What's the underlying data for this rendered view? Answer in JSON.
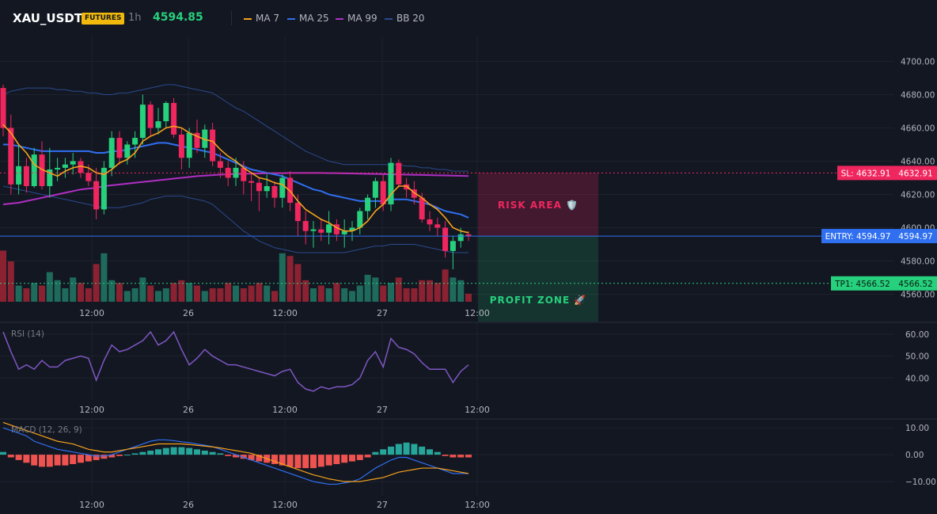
{
  "header": {
    "symbol": "XAU_USDT",
    "badge": "FUTURES",
    "timeframe": "1h",
    "last_price": "4594.85"
  },
  "legend": [
    {
      "label": "MA 7",
      "color": "#f7a21b"
    },
    {
      "label": "MA 25",
      "color": "#2f6ff0"
    },
    {
      "label": "MA 99",
      "color": "#b02fc4"
    },
    {
      "label": "BB 20",
      "color": "#2a4a8c"
    }
  ],
  "colors": {
    "up": "#26d07c",
    "down": "#f0265e",
    "vol_up": "#1e6b5c",
    "vol_down": "#8b2232",
    "rsi": "#7e57c2",
    "macd_line": "#2f6ff0",
    "signal_line": "#f7a21b",
    "hist_up": "#26a69a",
    "hist_down": "#ef5350"
  },
  "time_labels": [
    "12:00",
    "26",
    "12:00",
    "27",
    "12:00"
  ],
  "levels": {
    "sl": {
      "label": "SL: 4632.91",
      "value": 4632.91,
      "price_tag": "4632.91",
      "color": "#f0265e"
    },
    "entry": {
      "label": "ENTRY: 4594.97",
      "value": 4594.97,
      "price_tag": "4594.97",
      "color": "#2f6ff0"
    },
    "tp": {
      "label": "TP1: 4566.52",
      "value": 4566.52,
      "price_tag": "4566.52",
      "color": "#26d07c"
    }
  },
  "zones": {
    "risk": {
      "label": "RISK AREA 🛡️"
    },
    "profit": {
      "label": "PROFIT ZONE 🚀"
    }
  },
  "chart_data": [
    {
      "type": "candlestick",
      "ylim": [
        4555,
        4715
      ],
      "yticks": [
        "4700.00",
        "4680.00",
        "4660.00",
        "4640.00",
        "4620.00",
        "4600.00",
        "4580.00",
        "4560.00"
      ],
      "ytick_values": [
        4700,
        4680,
        4660,
        4640,
        4620,
        4600,
        4580,
        4560
      ],
      "candles": [
        [
          4684,
          4686,
          4655,
          4660
        ],
        [
          4660,
          4668,
          4620,
          4626
        ],
        [
          4626,
          4650,
          4620,
          4637
        ],
        [
          4637,
          4642,
          4621,
          4625
        ],
        [
          4625,
          4648,
          4624,
          4644
        ],
        [
          4644,
          4652,
          4623,
          4625
        ],
        [
          4625,
          4648,
          4618,
          4635
        ],
        [
          4635,
          4642,
          4628,
          4636
        ],
        [
          4636,
          4642,
          4630,
          4638
        ],
        [
          4638,
          4645,
          4632,
          4640
        ],
        [
          4640,
          4642,
          4630,
          4633
        ],
        [
          4633,
          4638,
          4625,
          4628
        ],
        [
          4628,
          4636,
          4605,
          4611
        ],
        [
          4611,
          4640,
          4608,
          4636
        ],
        [
          4636,
          4658,
          4631,
          4654
        ],
        [
          4654,
          4658,
          4638,
          4642
        ],
        [
          4642,
          4652,
          4638,
          4650
        ],
        [
          4650,
          4658,
          4642,
          4654
        ],
        [
          4654,
          4680,
          4650,
          4674
        ],
        [
          4674,
          4676,
          4655,
          4660
        ],
        [
          4660,
          4672,
          4656,
          4664
        ],
        [
          4664,
          4676,
          4660,
          4675
        ],
        [
          4675,
          4678,
          4654,
          4656
        ],
        [
          4656,
          4660,
          4635,
          4642
        ],
        [
          4642,
          4660,
          4636,
          4657
        ],
        [
          4657,
          4665,
          4645,
          4648
        ],
        [
          4648,
          4662,
          4642,
          4659
        ],
        [
          4659,
          4663,
          4637,
          4640
        ],
        [
          4640,
          4645,
          4630,
          4636
        ],
        [
          4636,
          4640,
          4625,
          4630
        ],
        [
          4630,
          4642,
          4625,
          4636
        ],
        [
          4636,
          4640,
          4620,
          4628
        ],
        [
          4628,
          4632,
          4616,
          4627
        ],
        [
          4627,
          4630,
          4610,
          4622
        ],
        [
          4622,
          4632,
          4618,
          4625
        ],
        [
          4625,
          4628,
          4612,
          4618
        ],
        [
          4618,
          4632,
          4612,
          4630
        ],
        [
          4630,
          4634,
          4610,
          4615
        ],
        [
          4615,
          4620,
          4595,
          4604
        ],
        [
          4604,
          4610,
          4590,
          4598
        ],
        [
          4598,
          4604,
          4588,
          4599
        ],
        [
          4599,
          4605,
          4592,
          4597
        ],
        [
          4597,
          4610,
          4590,
          4602
        ],
        [
          4602,
          4605,
          4592,
          4596
        ],
        [
          4596,
          4605,
          4588,
          4598
        ],
        [
          4598,
          4604,
          4592,
          4600
        ],
        [
          4600,
          4612,
          4596,
          4610
        ],
        [
          4610,
          4620,
          4605,
          4618
        ],
        [
          4618,
          4630,
          4612,
          4628
        ],
        [
          4628,
          4632,
          4610,
          4614
        ],
        [
          4614,
          4642,
          4610,
          4639
        ],
        [
          4639,
          4641,
          4624,
          4626
        ],
        [
          4626,
          4630,
          4618,
          4623
        ],
        [
          4623,
          4628,
          4614,
          4618
        ],
        [
          4618,
          4621,
          4603,
          4605
        ],
        [
          4605,
          4610,
          4598,
          4602
        ],
        [
          4602,
          4606,
          4595,
          4600
        ],
        [
          4600,
          4604,
          4582,
          4586
        ],
        [
          4586,
          4595,
          4575,
          4592
        ],
        [
          4592,
          4600,
          4588,
          4596
        ],
        [
          4596,
          4598,
          4592,
          4595
        ]
      ],
      "volume": [
        38,
        30,
        12,
        10,
        14,
        12,
        22,
        16,
        10,
        18,
        14,
        10,
        28,
        36,
        16,
        14,
        8,
        10,
        18,
        12,
        8,
        10,
        14,
        16,
        14,
        12,
        8,
        10,
        10,
        14,
        12,
        10,
        12,
        14,
        12,
        8,
        36,
        34,
        28,
        16,
        10,
        12,
        10,
        14,
        10,
        8,
        12,
        20,
        18,
        12,
        14,
        18,
        10,
        10,
        16,
        16,
        14,
        24,
        18,
        16,
        6
      ],
      "ma7_values": [
        4662,
        4657,
        4650,
        4645,
        4638,
        4635,
        4633,
        4631,
        4634,
        4636,
        4637,
        4636,
        4633,
        4632,
        4635,
        4639,
        4641,
        4645,
        4652,
        4655,
        4657,
        4660,
        4661,
        4660,
        4657,
        4655,
        4653,
        4652,
        4647,
        4643,
        4640,
        4636,
        4633,
        4630,
        4629,
        4627,
        4626,
        4622,
        4616,
        4611,
        4608,
        4605,
        4603,
        4600,
        4598,
        4598,
        4600,
        4604,
        4610,
        4614,
        4620,
        4625,
        4625,
        4621,
        4618,
        4614,
        4611,
        4606,
        4600,
        4598,
        4597
      ],
      "ma25_values": [
        4650,
        4650,
        4649,
        4648,
        4647,
        4646,
        4646,
        4646,
        4646,
        4646,
        4646,
        4646,
        4645,
        4645,
        4646,
        4646,
        4647,
        4648,
        4649,
        4650,
        4651,
        4651,
        4650,
        4649,
        4648,
        4647,
        4646,
        4645,
        4643,
        4641,
        4639,
        4637,
        4635,
        4634,
        4633,
        4632,
        4631,
        4629,
        4627,
        4625,
        4623,
        4622,
        4620,
        4619,
        4618,
        4617,
        4616,
        4616,
        4616,
        4616,
        4617,
        4617,
        4617,
        4616,
        4615,
        4614,
        4612,
        4610,
        4609,
        4608,
        4606
      ],
      "ma99_values": [
        4614,
        4614.5,
        4615,
        4616,
        4617,
        4618,
        4619,
        4620,
        4621,
        4622,
        4623,
        4623.5,
        4624,
        4625,
        4625.5,
        4626,
        4626.5,
        4627,
        4627.5,
        4628,
        4628.5,
        4629,
        4629.5,
        4630,
        4630.5,
        4631,
        4631.3,
        4631.6,
        4631.9,
        4632.1,
        4632.3,
        4632.4,
        4632.5,
        4632.6,
        4632.7,
        4632.8,
        4632.8,
        4632.9,
        4632.9,
        4632.9,
        4632.9,
        4632.9,
        4632.8,
        4632.8,
        4632.7,
        4632.6,
        4632.5,
        4632.4,
        4632.3,
        4632.2,
        4632.1,
        4632,
        4631.9,
        4631.8,
        4631.7,
        4631.6,
        4631.5,
        4631.4,
        4631.3,
        4631.2,
        4631.1
      ],
      "bb_upper_values": [
        4680,
        4682,
        4683,
        4684,
        4684,
        4684,
        4684,
        4683,
        4683,
        4682,
        4682,
        4681,
        4681,
        4680,
        4680,
        4681,
        4681,
        4682,
        4683,
        4684,
        4685,
        4686,
        4686,
        4685,
        4684,
        4683,
        4682,
        4681,
        4678,
        4675,
        4672,
        4670,
        4667,
        4664,
        4661,
        4658,
        4655,
        4652,
        4649,
        4646,
        4644,
        4642,
        4640,
        4639,
        4638,
        4638,
        4638,
        4638,
        4638,
        4638,
        4638,
        4638,
        4637,
        4637,
        4636,
        4636,
        4635,
        4635,
        4634,
        4634,
        4634
      ],
      "bb_lower_values": [
        4625,
        4624,
        4623,
        4622,
        4621,
        4620,
        4619,
        4618,
        4617,
        4616,
        4615,
        4614,
        4613,
        4612,
        4612,
        4612,
        4613,
        4614,
        4615,
        4617,
        4618,
        4619,
        4619,
        4619,
        4618,
        4617,
        4616,
        4614,
        4610,
        4606,
        4602,
        4598,
        4595,
        4592,
        4590,
        4588,
        4587,
        4586,
        4585,
        4585,
        4585,
        4585,
        4585,
        4585,
        4585,
        4586,
        4587,
        4588,
        4589,
        4589,
        4590,
        4590,
        4590,
        4590,
        4589,
        4588,
        4587,
        4586,
        4585,
        4585,
        4585
      ]
    },
    {
      "type": "line",
      "title": "RSI (14)",
      "ylim": [
        30,
        65
      ],
      "yticks": [
        "60.00",
        "50.00",
        "40.00"
      ],
      "ytick_values": [
        60,
        50,
        40
      ],
      "values": [
        61,
        52,
        44,
        46,
        44,
        48,
        45,
        45,
        48,
        49,
        50,
        49,
        39,
        48,
        55,
        52,
        53,
        55,
        57,
        61,
        55,
        57,
        61,
        53,
        46,
        49,
        53,
        50,
        48,
        46,
        46,
        45,
        44,
        43,
        42,
        41,
        43,
        44,
        38,
        35,
        34,
        36,
        35,
        36,
        36,
        37,
        40,
        48,
        52,
        45,
        58,
        54,
        53,
        51,
        47,
        44,
        44,
        44,
        38,
        43,
        46
      ],
      "color": "#7e57c2"
    },
    {
      "type": "bar",
      "title": "MACD (12, 26, 9)",
      "ylim": [
        -15,
        13
      ],
      "yticks": [
        "10.00",
        "0.00",
        "−10.00"
      ],
      "ytick_values": [
        10,
        0,
        -10
      ],
      "histogram": [
        1,
        -1,
        -2,
        -3,
        -4,
        -4.5,
        -4.5,
        -4,
        -4,
        -3.5,
        -3,
        -2.5,
        -2,
        -1.5,
        -1,
        -0.5,
        0,
        0.5,
        1,
        1.5,
        2,
        2.5,
        2.8,
        2.8,
        2.5,
        2,
        1.5,
        1,
        0.5,
        -0.5,
        -1,
        -1.5,
        -2,
        -2.5,
        -3,
        -3.5,
        -4,
        -4.5,
        -5,
        -5,
        -5,
        -4.5,
        -4,
        -3.5,
        -3,
        -2.5,
        -2,
        -1,
        1,
        2,
        3,
        4,
        4.5,
        4,
        3,
        2,
        1,
        -0.5,
        -1,
        -1,
        -1
      ],
      "macd_line": [
        10,
        9,
        8,
        7,
        5,
        4,
        3,
        2,
        1.5,
        1,
        0.5,
        0,
        -0.5,
        -0.5,
        0,
        1,
        2,
        3,
        4,
        5,
        5.5,
        5.5,
        5.2,
        4.8,
        4.5,
        4,
        3.5,
        3,
        2,
        1,
        0,
        -1,
        -2,
        -3,
        -4,
        -5,
        -6,
        -7,
        -8,
        -9,
        -10,
        -10.5,
        -11,
        -11,
        -10.5,
        -10,
        -9,
        -7,
        -5,
        -3.5,
        -2,
        -1,
        -1,
        -2,
        -3,
        -4,
        -5,
        -6,
        -7,
        -7,
        -7
      ],
      "signal_line": [
        12,
        11,
        10,
        9,
        8,
        7,
        6,
        5,
        4.5,
        4,
        3,
        2,
        1.5,
        1,
        1,
        1.5,
        2,
        2.5,
        3,
        3.5,
        4,
        4,
        4,
        4,
        3.8,
        3.5,
        3.2,
        2.9,
        2.5,
        2,
        1.5,
        1,
        0.5,
        -0.5,
        -1.5,
        -2.5,
        -3.5,
        -4.5,
        -5.5,
        -6.5,
        -7.5,
        -8.2,
        -9,
        -9.5,
        -10,
        -10,
        -10,
        -9.5,
        -9,
        -8.5,
        -7.5,
        -6.5,
        -6,
        -5.5,
        -5,
        -5,
        -5,
        -5.5,
        -6,
        -6.5,
        -7
      ]
    }
  ]
}
